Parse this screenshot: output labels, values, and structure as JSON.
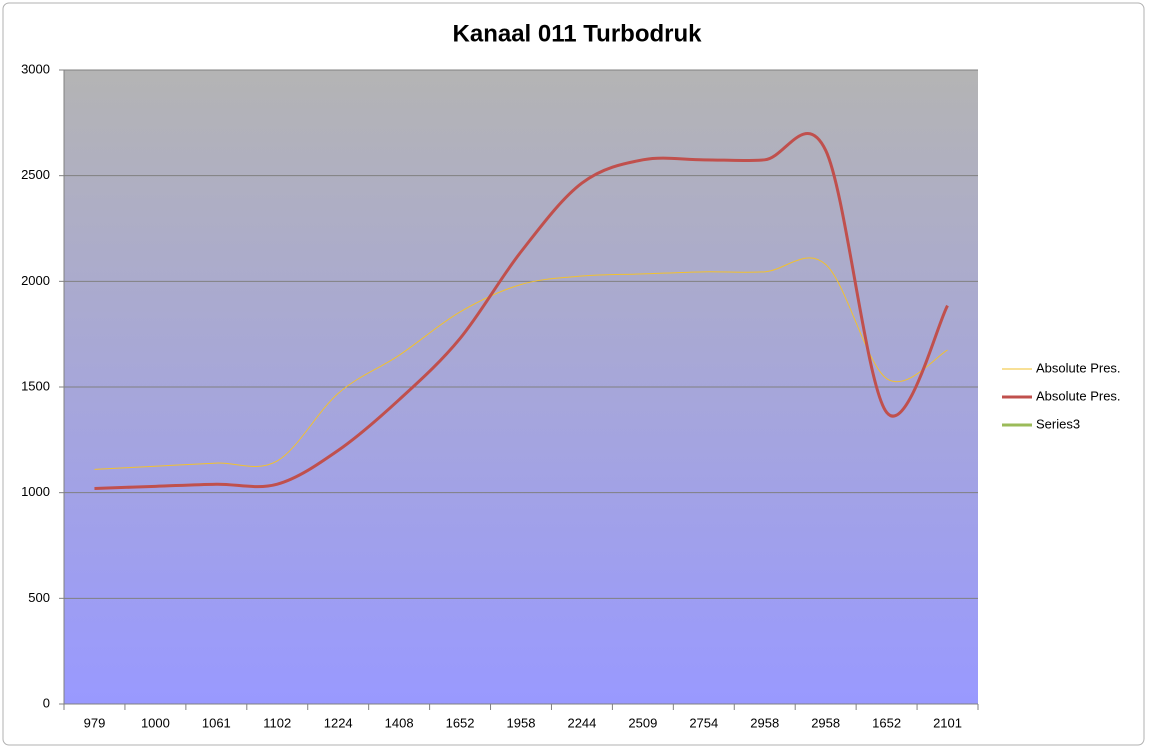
{
  "chart_data": {
    "type": "line",
    "title": "Kanaal 011 Turbodruk",
    "smooth": true,
    "grid": true,
    "categories": [
      "979",
      "1000",
      "1061",
      "1102",
      "1224",
      "1408",
      "1652",
      "1958",
      "2244",
      "2509",
      "2754",
      "2958",
      "2958",
      "1652",
      "2101"
    ],
    "series": [
      {
        "name": "Absolute Pres.",
        "color": "#f2c12e",
        "width": 1,
        "values": [
          1110,
          1125,
          1140,
          1150,
          1470,
          1650,
          1855,
          1985,
          2025,
          2035,
          2045,
          2045,
          2080,
          1540,
          1675
        ]
      },
      {
        "name": "Absolute Pres.",
        "color": "#c0504d",
        "width": 3,
        "values": [
          1020,
          1030,
          1040,
          1040,
          1200,
          1440,
          1730,
          2140,
          2465,
          2575,
          2575,
          2575,
          2620,
          1380,
          1885
        ]
      },
      {
        "name": "Series3",
        "color": "#9bbb59",
        "width": 3,
        "values": [
          null,
          null,
          null,
          null,
          null,
          null,
          null,
          null,
          null,
          null,
          null,
          null,
          null,
          null,
          null
        ]
      }
    ],
    "ylim": [
      0,
      3000
    ],
    "yticks": [
      0,
      500,
      1000,
      1500,
      2000,
      2500,
      3000
    ],
    "legend": "right"
  }
}
